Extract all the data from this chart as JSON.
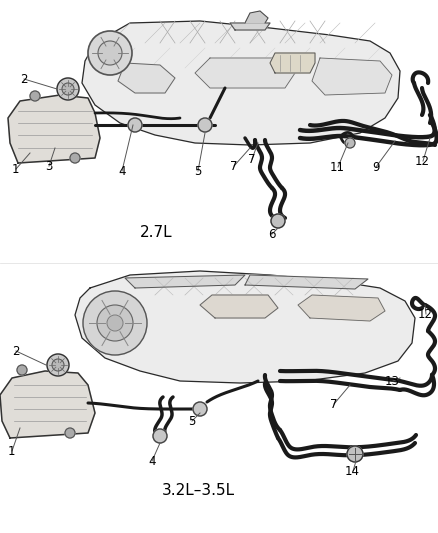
{
  "bg_color": "#ffffff",
  "diagram1_label": "2.7L",
  "diagram2_label": "3.2L–3.5L",
  "line_color": "#1a1a1a",
  "engine_fill": "#f0f0f0",
  "engine_stroke": "#2a2a2a",
  "hose_lw": 2.8,
  "label_fontsize": 8.5,
  "sublabel_fontsize": 11
}
